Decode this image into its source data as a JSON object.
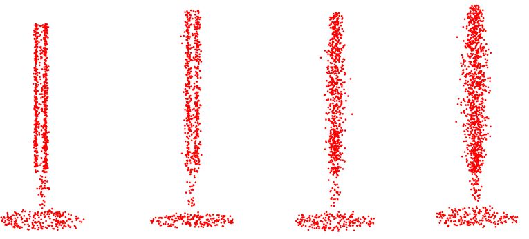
{
  "figure": {
    "background_color": "#ffffff",
    "point_color": "#ff0000",
    "panels": [
      {
        "name": "point-cloud-1",
        "style": "dense-two-strands"
      },
      {
        "name": "point-cloud-2",
        "style": "medium-two-strands"
      },
      {
        "name": "point-cloud-3",
        "style": "scattered-column"
      },
      {
        "name": "point-cloud-4",
        "style": "diffuse-column"
      }
    ]
  }
}
